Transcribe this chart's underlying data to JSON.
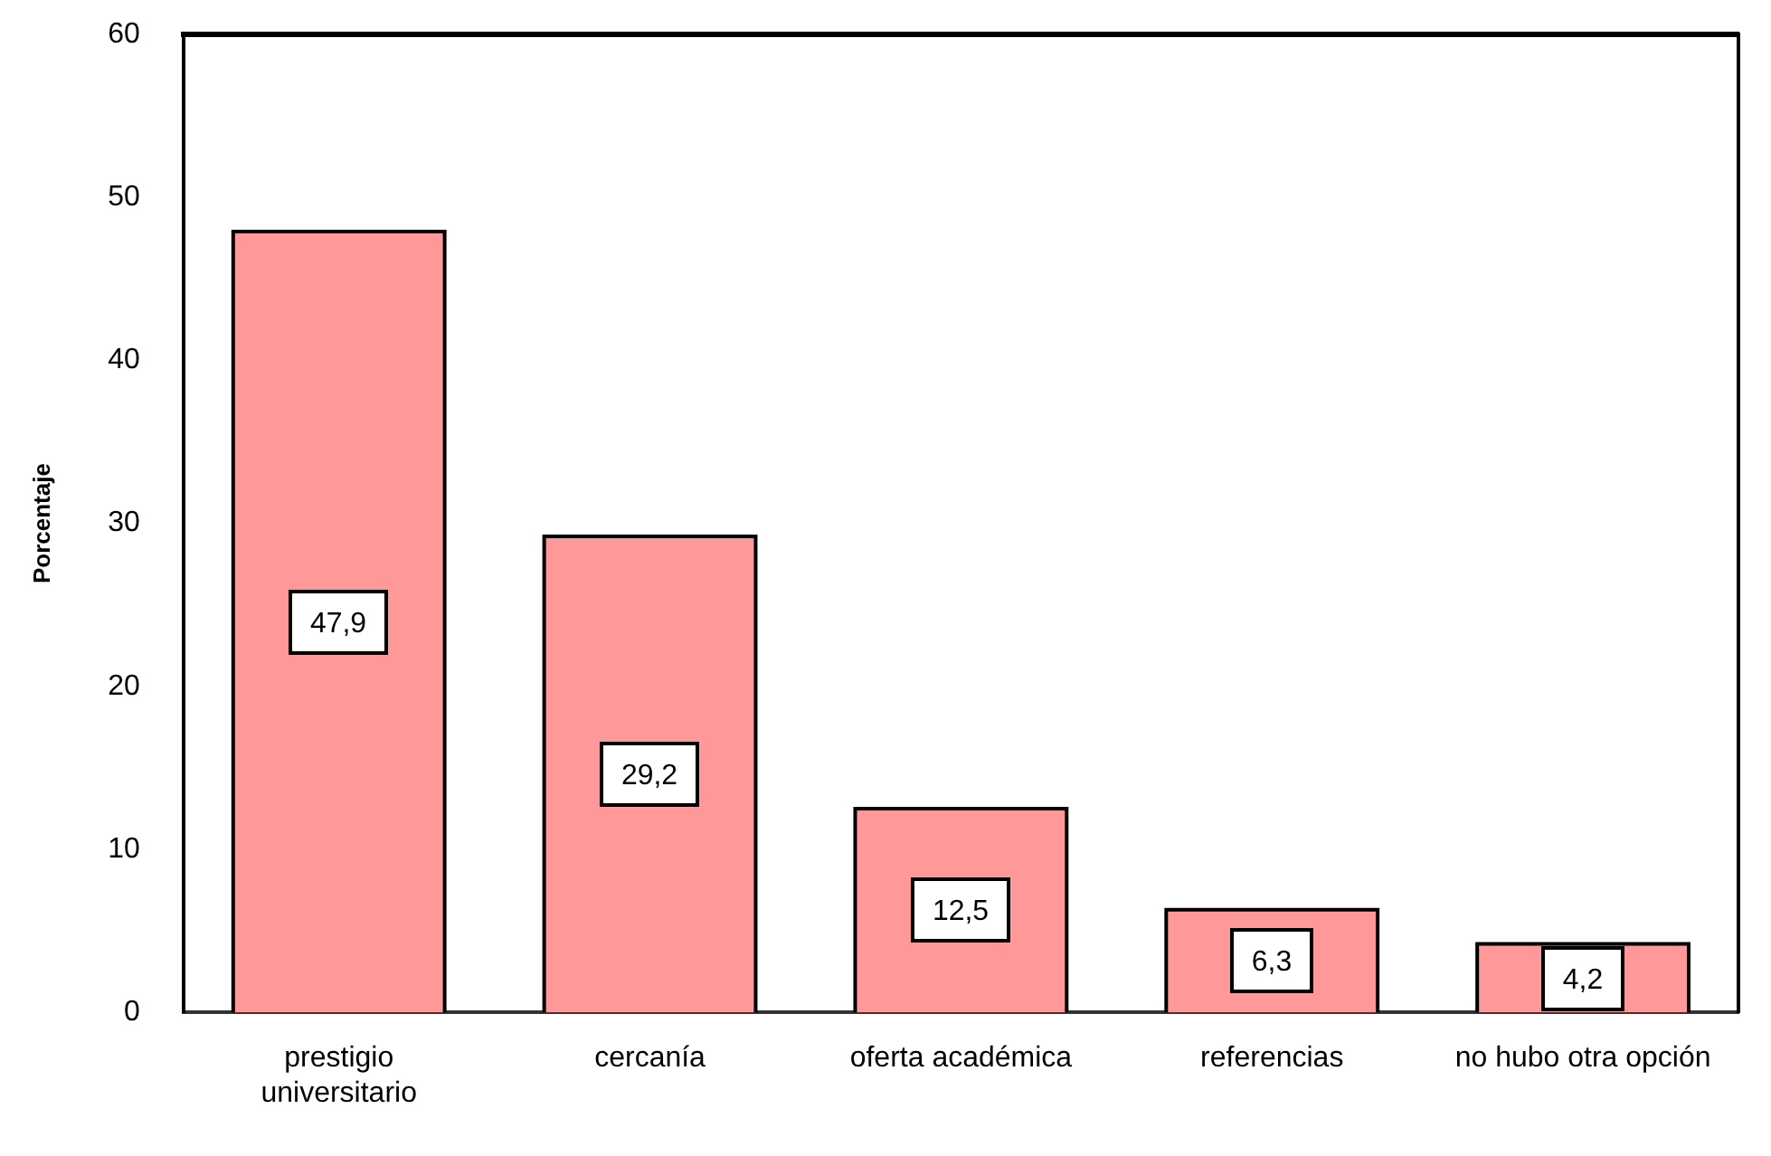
{
  "chart_data": {
    "type": "bar",
    "ylabel": "Porcentaje",
    "categories": [
      "prestigio universitario",
      "cercanía",
      "oferta académica",
      "referencias",
      "no hubo otra opción"
    ],
    "values": [
      47.9,
      29.2,
      12.5,
      6.3,
      4.2
    ],
    "value_labels": [
      "47,9",
      "29,2",
      "12,5",
      "6,3",
      "4,2"
    ],
    "color": "#ff9999",
    "ylim": [
      0,
      60
    ],
    "yticks": [
      0,
      10,
      20,
      30,
      40,
      50,
      60
    ],
    "grid": false,
    "legend": false
  }
}
